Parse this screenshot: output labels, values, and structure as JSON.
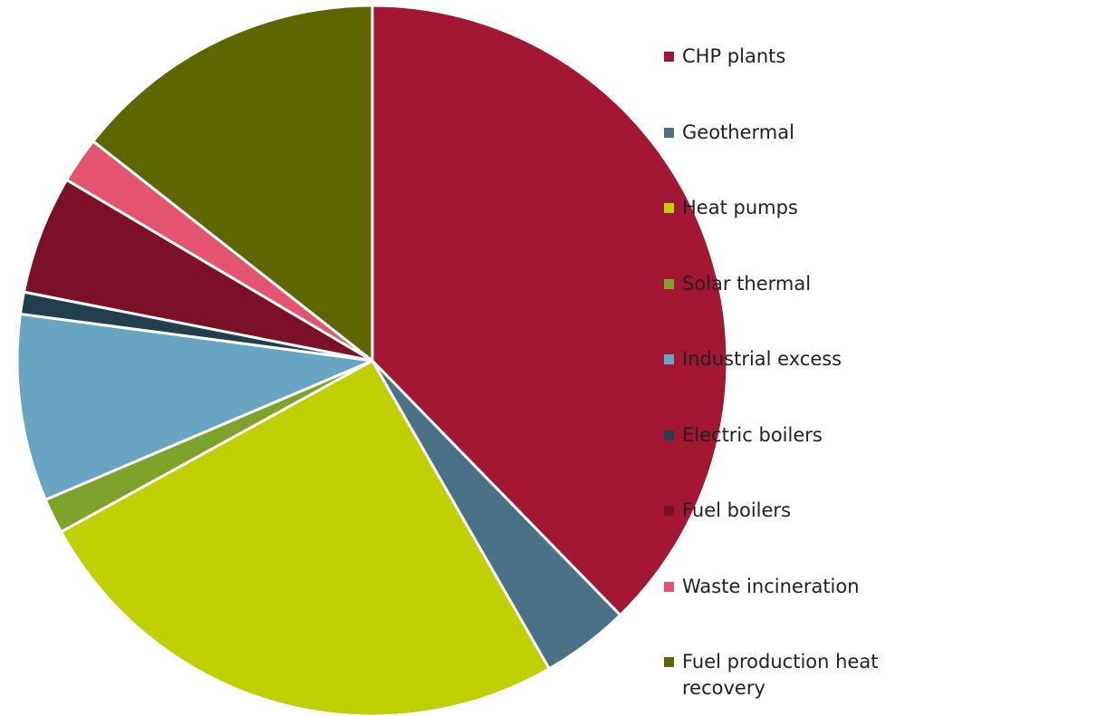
{
  "chart_data": {
    "type": "pie",
    "categories": [
      "CHP plants",
      "Geothermal",
      "Heat pumps",
      "Solar thermal",
      "Industrial excess",
      "Electric boilers",
      "Fuel boilers",
      "Waste incineration",
      "Fuel production heat recovery"
    ],
    "values": [
      37.7,
      4.0,
      25.3,
      1.6,
      8.5,
      1.0,
      5.4,
      2.1,
      14.4
    ],
    "colors": [
      "#a31735",
      "#4a7186",
      "#bfd000",
      "#7fa22a",
      "#68a5c2",
      "#233f4d",
      "#7b1028",
      "#e4536f",
      "#5e6600"
    ],
    "legend": "right"
  }
}
